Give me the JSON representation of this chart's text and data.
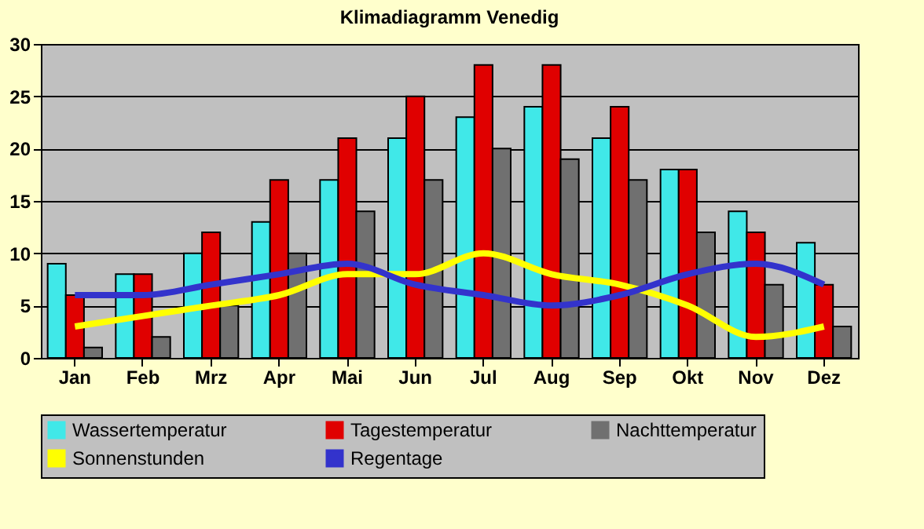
{
  "chart_data": {
    "type": "bar",
    "title": "Klimadiagramm Venedig",
    "categories": [
      "Jan",
      "Feb",
      "Mrz",
      "Apr",
      "Mai",
      "Jun",
      "Jul",
      "Aug",
      "Sep",
      "Okt",
      "Nov",
      "Dez"
    ],
    "series": [
      {
        "name": "Wassertemperatur",
        "color": "#40e8e8",
        "values": [
          9,
          8,
          10,
          13,
          17,
          21,
          23,
          24,
          21,
          18,
          14,
          11
        ]
      },
      {
        "name": "Tagestemperatur",
        "color": "#e00000",
        "values": [
          6,
          8,
          12,
          17,
          21,
          25,
          28,
          28,
          24,
          18,
          12,
          7
        ]
      },
      {
        "name": "Nachttemperatur",
        "color": "#707070",
        "values": [
          1,
          2,
          5,
          10,
          14,
          17,
          20,
          19,
          17,
          12,
          7,
          3
        ]
      },
      {
        "name": "Sonnenstunden",
        "type": "line",
        "color": "#ffff00",
        "values": [
          3,
          4,
          5,
          6,
          8,
          8,
          10,
          8,
          7,
          5,
          2,
          3
        ]
      },
      {
        "name": "Regentage",
        "type": "line",
        "color": "#3333cc",
        "values": [
          6,
          6,
          7,
          8,
          9,
          7,
          6,
          5,
          6,
          8,
          9,
          7
        ]
      }
    ],
    "ylim": [
      0,
      30
    ],
    "yticks": [
      0,
      5,
      10,
      15,
      20,
      25,
      30
    ],
    "grid": "y",
    "legend": "bottom"
  }
}
